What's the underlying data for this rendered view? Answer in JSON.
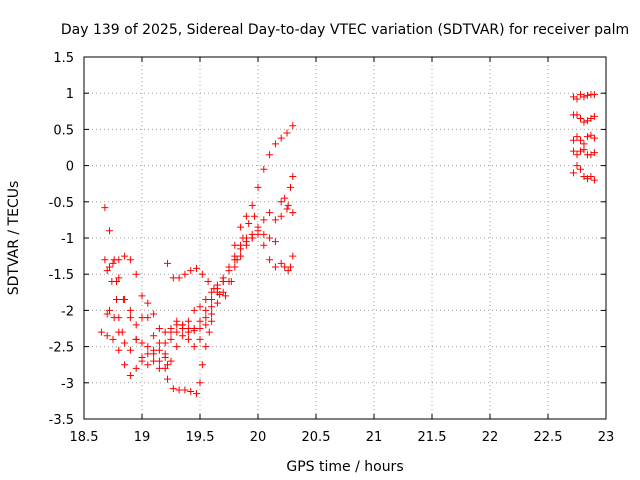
{
  "chart_data": {
    "type": "scatter",
    "title": "Day 139 of 2025, Sidereal Day-to-day VTEC variation (SDTVAR) for receiver palm",
    "xlabel": "GPS time / hours",
    "ylabel": "SDTVAR / TECUs",
    "xlim": [
      18.5,
      23
    ],
    "ylim": [
      -3.5,
      1.5
    ],
    "xticks": [
      "18.5",
      "19",
      "19.5",
      "20",
      "20.5",
      "21",
      "21.5",
      "22",
      "22.5",
      "23"
    ],
    "yticks": [
      "-3.5",
      "-3",
      "-2.5",
      "-2",
      "-1.5",
      "-1",
      "-0.5",
      "0",
      "0.5",
      "1",
      "1.5"
    ],
    "grid": true,
    "marker": "+",
    "color": "#ff0000",
    "series": [
      {
        "name": "track-1",
        "points": [
          [
            18.68,
            -0.58
          ],
          [
            18.72,
            -0.9
          ],
          [
            18.76,
            -1.3
          ],
          [
            18.8,
            -1.55
          ],
          [
            18.85,
            -1.85
          ],
          [
            18.9,
            -2.1
          ],
          [
            18.95,
            -2.4
          ],
          [
            19.0,
            -2.7
          ],
          [
            19.05,
            -2.75
          ],
          [
            19.1,
            -2.6
          ],
          [
            19.15,
            -2.45
          ],
          [
            19.2,
            -2.3
          ],
          [
            19.25,
            -2.25
          ],
          [
            19.3,
            -2.2
          ],
          [
            19.35,
            -2.2
          ],
          [
            19.4,
            -2.25
          ],
          [
            19.45,
            -2.28
          ],
          [
            19.5,
            -2.25
          ],
          [
            19.55,
            -2.1
          ],
          [
            19.6,
            -1.95
          ],
          [
            19.65,
            -1.75
          ],
          [
            19.7,
            -1.6
          ],
          [
            19.75,
            -1.4
          ],
          [
            19.8,
            -1.1
          ],
          [
            19.85,
            -0.85
          ],
          [
            19.9,
            -0.7
          ],
          [
            19.95,
            -0.55
          ],
          [
            20.0,
            -0.3
          ],
          [
            20.05,
            -0.05
          ],
          [
            20.1,
            0.15
          ],
          [
            20.15,
            0.3
          ],
          [
            20.2,
            0.38
          ],
          [
            20.25,
            0.45
          ],
          [
            20.3,
            0.55
          ]
        ]
      },
      {
        "name": "track-2",
        "points": [
          [
            18.68,
            -1.3
          ],
          [
            18.72,
            -1.4
          ],
          [
            18.78,
            -1.6
          ],
          [
            18.84,
            -1.85
          ],
          [
            18.9,
            -2.0
          ],
          [
            18.95,
            -2.2
          ],
          [
            19.0,
            -2.45
          ],
          [
            19.05,
            -2.6
          ],
          [
            19.1,
            -2.7
          ],
          [
            19.15,
            -2.8
          ],
          [
            19.2,
            -2.6
          ],
          [
            19.25,
            -2.4
          ],
          [
            19.3,
            -2.3
          ],
          [
            19.35,
            -2.25
          ],
          [
            19.4,
            -2.15
          ],
          [
            19.45,
            -2.0
          ],
          [
            19.5,
            -1.95
          ],
          [
            19.55,
            -1.85
          ],
          [
            19.6,
            -1.75
          ],
          [
            19.65,
            -1.65
          ],
          [
            19.7,
            -1.55
          ],
          [
            19.75,
            -1.4
          ],
          [
            19.8,
            -1.25
          ],
          [
            19.85,
            -1.1
          ],
          [
            19.9,
            -1.0
          ],
          [
            19.95,
            -0.95
          ],
          [
            20.0,
            -0.85
          ],
          [
            20.05,
            -0.75
          ],
          [
            20.1,
            -0.65
          ],
          [
            20.15,
            -0.75
          ],
          [
            20.2,
            -0.7
          ],
          [
            20.25,
            -0.6
          ],
          [
            20.3,
            -0.65
          ]
        ]
      },
      {
        "name": "track-3",
        "points": [
          [
            18.65,
            -2.3
          ],
          [
            18.7,
            -2.35
          ],
          [
            18.75,
            -2.4
          ],
          [
            18.8,
            -2.55
          ],
          [
            18.85,
            -2.75
          ],
          [
            18.9,
            -2.9
          ],
          [
            18.95,
            -2.8
          ],
          [
            19.0,
            -2.65
          ],
          [
            19.05,
            -2.5
          ],
          [
            19.1,
            -2.55
          ],
          [
            19.15,
            -2.7
          ],
          [
            19.2,
            -2.8
          ],
          [
            19.25,
            -2.7
          ],
          [
            19.3,
            -2.5
          ],
          [
            19.35,
            -2.35
          ],
          [
            19.4,
            -2.3
          ],
          [
            19.45,
            -2.25
          ],
          [
            19.5,
            -2.15
          ],
          [
            19.55,
            -2.0
          ],
          [
            19.6,
            -1.85
          ],
          [
            19.65,
            -1.7
          ],
          [
            19.7,
            -1.6
          ],
          [
            19.75,
            -1.45
          ],
          [
            19.8,
            -1.3
          ],
          [
            19.85,
            -1.15
          ],
          [
            19.9,
            -1.05
          ],
          [
            19.95,
            -1.0
          ],
          [
            20.0,
            -0.95
          ],
          [
            20.05,
            -1.1
          ],
          [
            20.1,
            -1.3
          ],
          [
            20.15,
            -1.4
          ]
        ]
      },
      {
        "name": "track-4",
        "points": [
          [
            18.7,
            -2.05
          ],
          [
            18.72,
            -2.0
          ],
          [
            18.76,
            -2.1
          ],
          [
            18.8,
            -2.3
          ],
          [
            18.85,
            -2.45
          ],
          [
            18.9,
            -2.55
          ],
          [
            18.95,
            -2.4
          ],
          [
            19.0,
            -2.1
          ],
          [
            19.05,
            -1.9
          ],
          [
            19.1,
            -2.05
          ],
          [
            19.15,
            -2.25
          ],
          [
            19.2,
            -2.45
          ],
          [
            19.25,
            -2.3
          ],
          [
            19.3,
            -2.15
          ],
          [
            19.35,
            -2.2
          ],
          [
            19.4,
            -2.4
          ],
          [
            19.45,
            -2.5
          ],
          [
            19.5,
            -2.4
          ],
          [
            19.55,
            -2.2
          ],
          [
            19.6,
            -2.05
          ],
          [
            19.65,
            -1.9
          ],
          [
            19.7,
            -1.75
          ],
          [
            19.75,
            -1.6
          ],
          [
            19.8,
            -1.4
          ],
          [
            19.85,
            -1.25
          ],
          [
            19.9,
            -1.1
          ],
          [
            19.95,
            -1.0
          ],
          [
            20.0,
            -0.9
          ],
          [
            20.05,
            -0.95
          ],
          [
            20.1,
            -1.0
          ],
          [
            20.15,
            -1.05
          ]
        ]
      },
      {
        "name": "track-5",
        "points": [
          [
            18.75,
            -1.35
          ],
          [
            18.8,
            -1.3
          ],
          [
            18.85,
            -1.25
          ],
          [
            18.9,
            -1.3
          ],
          [
            18.95,
            -1.5
          ],
          [
            19.0,
            -1.8
          ],
          [
            19.05,
            -2.1
          ],
          [
            19.1,
            -2.35
          ],
          [
            19.15,
            -2.55
          ],
          [
            19.2,
            -2.65
          ],
          [
            19.22,
            -2.75
          ]
        ]
      },
      {
        "name": "track-6",
        "points": [
          [
            18.7,
            -1.45
          ],
          [
            18.74,
            -1.6
          ],
          [
            18.78,
            -1.85
          ],
          [
            18.8,
            -2.1
          ],
          [
            18.83,
            -2.3
          ]
        ]
      },
      {
        "name": "track-7",
        "points": [
          [
            19.22,
            -1.35
          ],
          [
            19.27,
            -1.55
          ],
          [
            19.32,
            -1.55
          ],
          [
            19.37,
            -1.5
          ],
          [
            19.42,
            -1.45
          ],
          [
            19.47,
            -1.42
          ],
          [
            19.52,
            -1.5
          ],
          [
            19.57,
            -1.6
          ],
          [
            19.62,
            -1.7
          ],
          [
            19.67,
            -1.78
          ],
          [
            19.72,
            -1.8
          ],
          [
            19.77,
            -1.6
          ],
          [
            19.82,
            -1.3
          ],
          [
            19.87,
            -1.0
          ],
          [
            19.92,
            -0.8
          ],
          [
            19.97,
            -0.7
          ]
        ]
      },
      {
        "name": "track-8",
        "points": [
          [
            19.22,
            -2.95
          ],
          [
            19.27,
            -3.08
          ],
          [
            19.32,
            -3.1
          ],
          [
            19.37,
            -3.1
          ],
          [
            19.42,
            -3.12
          ],
          [
            19.47,
            -3.15
          ],
          [
            19.5,
            -3.0
          ],
          [
            19.52,
            -2.75
          ],
          [
            19.55,
            -2.5
          ],
          [
            19.58,
            -2.3
          ],
          [
            19.6,
            -2.15
          ]
        ]
      },
      {
        "name": "track-9",
        "points": [
          [
            20.2,
            -1.35
          ],
          [
            20.23,
            -1.4
          ],
          [
            20.26,
            -1.45
          ],
          [
            20.28,
            -1.4
          ],
          [
            20.3,
            -1.25
          ]
        ]
      },
      {
        "name": "track-10",
        "points": [
          [
            20.2,
            -0.5
          ],
          [
            20.23,
            -0.45
          ],
          [
            20.26,
            -0.55
          ],
          [
            20.3,
            -0.15
          ],
          [
            20.28,
            -0.3
          ]
        ]
      },
      {
        "name": "track-11",
        "points": [
          [
            22.72,
            0.95
          ],
          [
            22.75,
            0.92
          ],
          [
            22.78,
            0.98
          ],
          [
            22.81,
            0.95
          ],
          [
            22.84,
            0.97
          ],
          [
            22.87,
            0.98
          ],
          [
            22.9,
            0.98
          ]
        ]
      },
      {
        "name": "track-12",
        "points": [
          [
            22.72,
            0.7
          ],
          [
            22.75,
            0.7
          ],
          [
            22.78,
            0.65
          ],
          [
            22.81,
            0.6
          ],
          [
            22.84,
            0.62
          ],
          [
            22.87,
            0.65
          ],
          [
            22.9,
            0.68
          ]
        ]
      },
      {
        "name": "track-13",
        "points": [
          [
            22.72,
            0.35
          ],
          [
            22.75,
            0.4
          ],
          [
            22.78,
            0.35
          ],
          [
            22.81,
            0.3
          ],
          [
            22.84,
            0.4
          ],
          [
            22.87,
            0.42
          ],
          [
            22.9,
            0.38
          ]
        ]
      },
      {
        "name": "track-14",
        "points": [
          [
            22.72,
            0.2
          ],
          [
            22.75,
            0.15
          ],
          [
            22.78,
            0.2
          ],
          [
            22.81,
            0.22
          ],
          [
            22.84,
            0.15
          ],
          [
            22.87,
            0.15
          ],
          [
            22.9,
            0.18
          ]
        ]
      },
      {
        "name": "track-15",
        "points": [
          [
            22.72,
            -0.1
          ],
          [
            22.75,
            0.0
          ],
          [
            22.78,
            -0.05
          ],
          [
            22.81,
            -0.15
          ],
          [
            22.84,
            -0.18
          ],
          [
            22.87,
            -0.15
          ],
          [
            22.9,
            -0.2
          ]
        ]
      }
    ]
  }
}
